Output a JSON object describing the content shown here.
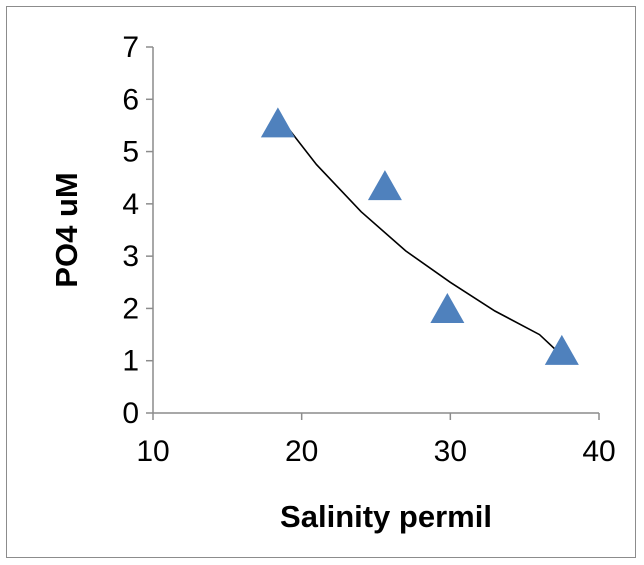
{
  "chart_data": {
    "type": "scatter",
    "xlabel": "Salinity permil",
    "ylabel": "PO4 uM",
    "xlim": [
      10,
      40
    ],
    "ylim": [
      0,
      7
    ],
    "x_ticks": [
      "10",
      "20",
      "30",
      "40"
    ],
    "y_ticks": [
      "0",
      "1",
      "2",
      "3",
      "4",
      "5",
      "6",
      "7"
    ],
    "grid": false,
    "legend": "none",
    "marker": "triangle",
    "marker_color": "#4f81bd",
    "trendline_color": "#000000",
    "series": [
      {
        "x": [
          18.4,
          25.6,
          29.8,
          37.5
        ],
        "y": [
          5.5,
          4.3,
          1.95,
          1.15
        ]
      }
    ],
    "trendline": {
      "type": "exponential",
      "x": [
        18.4,
        21,
        24,
        27,
        30,
        33,
        36,
        37.5
      ],
      "y": [
        5.7,
        4.75,
        3.85,
        3.1,
        2.5,
        1.95,
        1.5,
        1.1
      ]
    }
  }
}
